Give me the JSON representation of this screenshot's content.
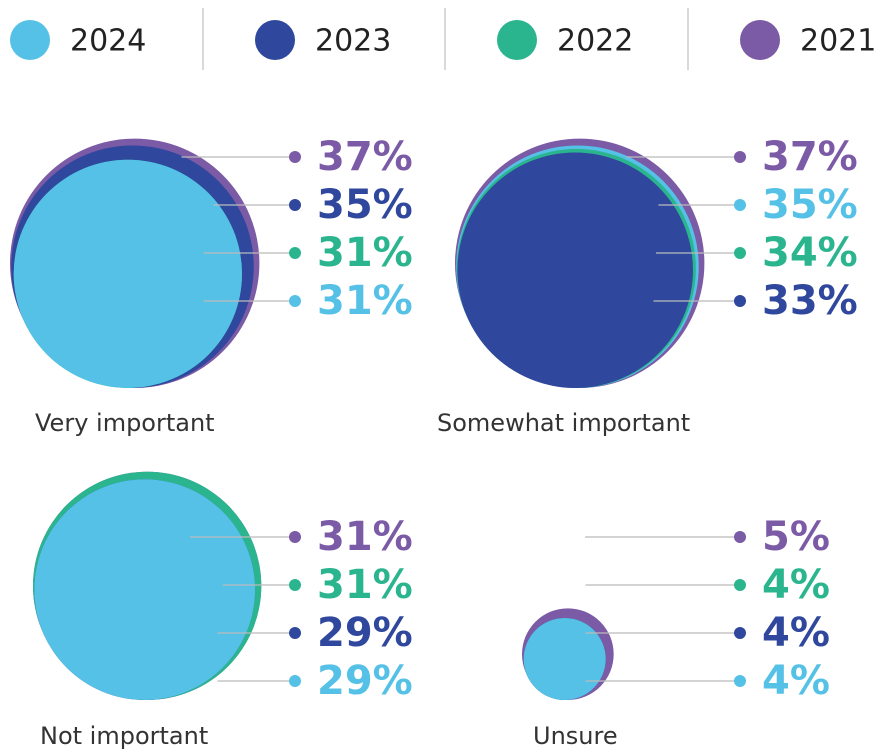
{
  "chart_data": {
    "type": "nested-bubble",
    "categories": [
      "Very important",
      "Somewhat important",
      "Not important",
      "Unsure"
    ],
    "series": [
      {
        "name": "2024",
        "color": "#56c1e6",
        "values": [
          31,
          35,
          29,
          4
        ],
        "value_labels": [
          "31%",
          "35%",
          "29%",
          "4%"
        ]
      },
      {
        "name": "2023",
        "color": "#2f479c",
        "values": [
          35,
          33,
          29,
          4
        ],
        "value_labels": [
          "35%",
          "33%",
          "29%",
          "4%"
        ]
      },
      {
        "name": "2022",
        "color": "#2bb58e",
        "values": [
          31,
          34,
          31,
          4
        ],
        "value_labels": [
          "31%",
          "34%",
          "31%",
          "4%"
        ]
      },
      {
        "name": "2021",
        "color": "#7b5aa6",
        "values": [
          37,
          37,
          31,
          5
        ],
        "value_labels": [
          "37%",
          "37%",
          "31%",
          "5%"
        ]
      }
    ],
    "legend": "top"
  }
}
